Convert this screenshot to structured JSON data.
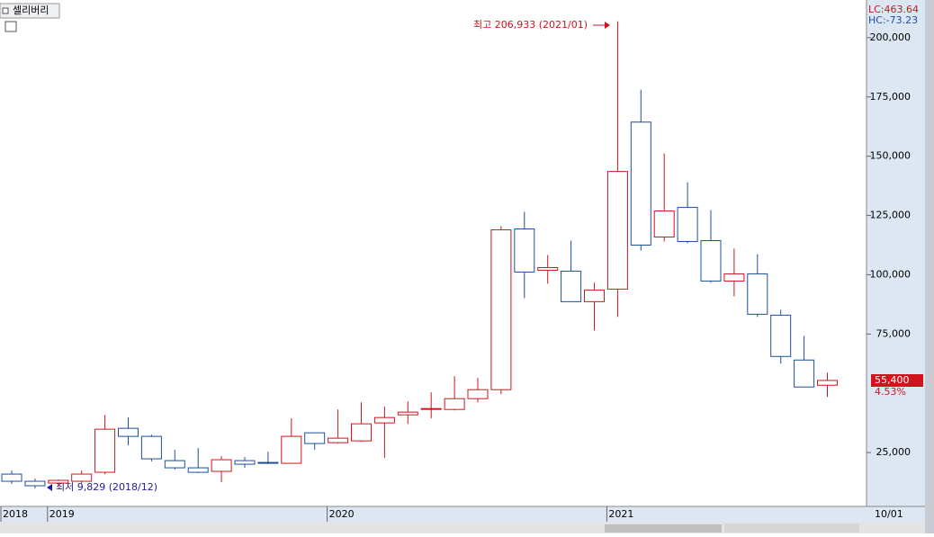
{
  "chart_data": {
    "type": "candlestick",
    "title": "셀리버리",
    "indicators": [
      "LC:463.64",
      "HC:-73.23"
    ],
    "annotations": [
      "최고 206,933 (2021/01)",
      "최저 9,829 (2018/12)"
    ],
    "price_label": "55,400",
    "change_label": "4.53%",
    "categories": [
      "2018",
      null,
      "2019",
      null,
      null,
      null,
      null,
      null,
      null,
      null,
      null,
      null,
      null,
      null,
      "2020",
      null,
      null,
      null,
      null,
      null,
      null,
      null,
      null,
      null,
      null,
      null,
      "2021",
      null,
      null,
      null,
      null,
      null,
      null,
      null,
      null,
      null
    ],
    "x_end_label": "10/01",
    "up_color": "#d0141c",
    "down_color": "#1c4f9c",
    "open": [
      15910,
      12880,
      12120,
      12880,
      16670,
      35230,
      31820,
      21590,
      18560,
      17050,
      21590,
      20830,
      20460,
      33330,
      29170,
      29920,
      37500,
      40910,
      43180,
      43180,
      47730,
      51520,
      119320,
      101900,
      101520,
      88640,
      93940,
      164390,
      115910,
      128410,
      114390,
      97350,
      100380,
      82950,
      64020,
      53410
    ],
    "high": [
      17420,
      14020,
      13640,
      17420,
      40910,
      39770,
      32580,
      26140,
      26900,
      23490,
      23110,
      25380,
      39390,
      33330,
      43180,
      46210,
      44320,
      46590,
      50380,
      57200,
      56440,
      120460,
      126520,
      108330,
      114390,
      96590,
      206933,
      178030,
      151140,
      139020,
      127270,
      110990,
      108710,
      85230,
      74240,
      58710
    ],
    "low": [
      11740,
      9829,
      10600,
      12120,
      15910,
      28030,
      21210,
      17800,
      16290,
      12500,
      18560,
      20080,
      20460,
      26140,
      28790,
      29550,
      22730,
      37120,
      39390,
      42800,
      46210,
      49620,
      90150,
      96210,
      88640,
      76520,
      82200,
      110230,
      114020,
      113260,
      96590,
      90910,
      82200,
      62500,
      52650,
      48480
    ],
    "close": [
      12880,
      10980,
      13260,
      15910,
      34850,
      31820,
      22350,
      18560,
      16670,
      21970,
      20080,
      20460,
      31820,
      28790,
      31060,
      37120,
      39770,
      42050,
      43560,
      47730,
      51520,
      118940,
      101140,
      103030,
      88640,
      93560,
      143560,
      112500,
      126890,
      114020,
      97350,
      100380,
      83330,
      65530,
      52650,
      55400
    ],
    "ylim": [
      2270,
      214000
    ],
    "yticks": [
      {
        "value": 25000,
        "label": "25,000"
      },
      {
        "value": 75000,
        "label": "75,000"
      },
      {
        "value": 100000,
        "label": "100,000"
      },
      {
        "value": 125000,
        "label": "125,000"
      },
      {
        "value": 150000,
        "label": "150,000"
      },
      {
        "value": 175000,
        "label": "175,000"
      },
      {
        "value": 200000,
        "label": "200,000"
      }
    ]
  }
}
